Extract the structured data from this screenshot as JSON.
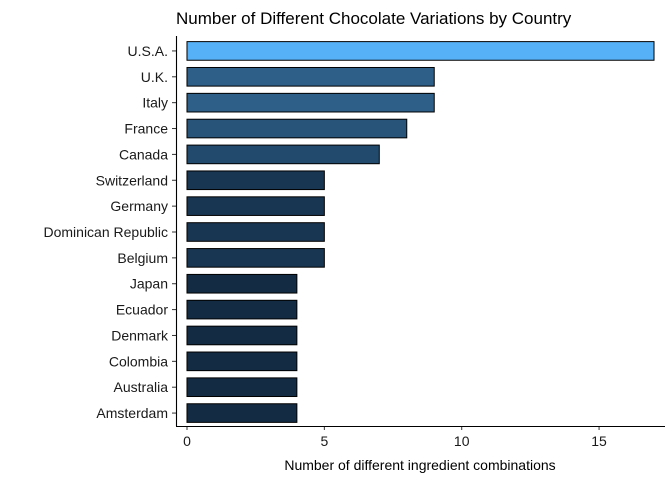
{
  "chart_data": {
    "type": "bar",
    "orientation": "horizontal",
    "title": "Number of Different Chocolate Variations by Country",
    "xlabel": "Number of different ingredient combinations",
    "ylabel": "",
    "categories": [
      "U.S.A.",
      "U.K.",
      "Italy",
      "France",
      "Canada",
      "Switzerland",
      "Germany",
      "Dominican Republic",
      "Belgium",
      "Japan",
      "Ecuador",
      "Denmark",
      "Colombia",
      "Australia",
      "Amsterdam"
    ],
    "values": [
      17,
      9,
      9,
      8,
      7,
      5,
      5,
      5,
      5,
      4,
      4,
      4,
      4,
      4,
      4
    ],
    "xlim": [
      -0.4,
      17.4
    ],
    "xticks": [
      0,
      5,
      10,
      15
    ],
    "grid": false,
    "legend": "none",
    "color_scale": {
      "low": "#132B43",
      "high": "#56B1F7"
    }
  }
}
